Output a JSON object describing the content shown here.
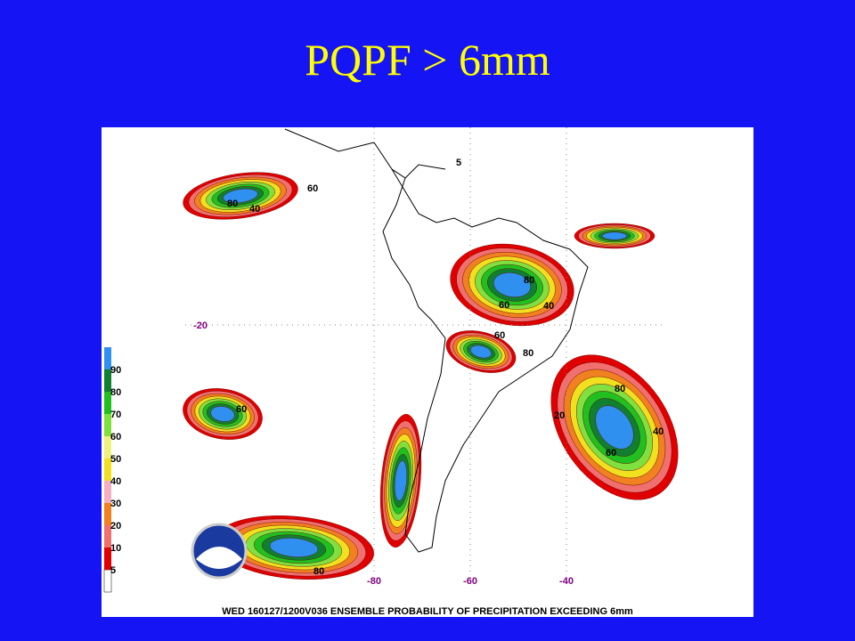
{
  "slide": {
    "title": "PQPF > 6mm"
  },
  "map": {
    "legend": [
      {
        "label": "5",
        "color": "#e00000"
      },
      {
        "label": "10",
        "color": "#f07070"
      },
      {
        "label": "20",
        "color": "#f08020"
      },
      {
        "label": "30",
        "color": "#f4b0c0"
      },
      {
        "label": "40",
        "color": "#f0e020"
      },
      {
        "label": "50",
        "color": "#f0f080"
      },
      {
        "label": "60",
        "color": "#80e040"
      },
      {
        "label": "70",
        "color": "#20c020"
      },
      {
        "label": "80",
        "color": "#108030"
      },
      {
        "label": "90",
        "color": "#3090f0"
      }
    ],
    "lat_labels": [
      "-20"
    ],
    "lon_labels": [
      "-80",
      "-60",
      "-40"
    ],
    "contour_labels": [
      "80",
      "60",
      "40",
      "80",
      "60",
      "80",
      "40",
      "60",
      "80",
      "60",
      "40",
      "20",
      "60",
      "80",
      "5"
    ],
    "caption": "WED 160127/1200V036  ENSEMBLE PROBABILITY OF PRECIPITATION EXCEEDING 6mm"
  }
}
